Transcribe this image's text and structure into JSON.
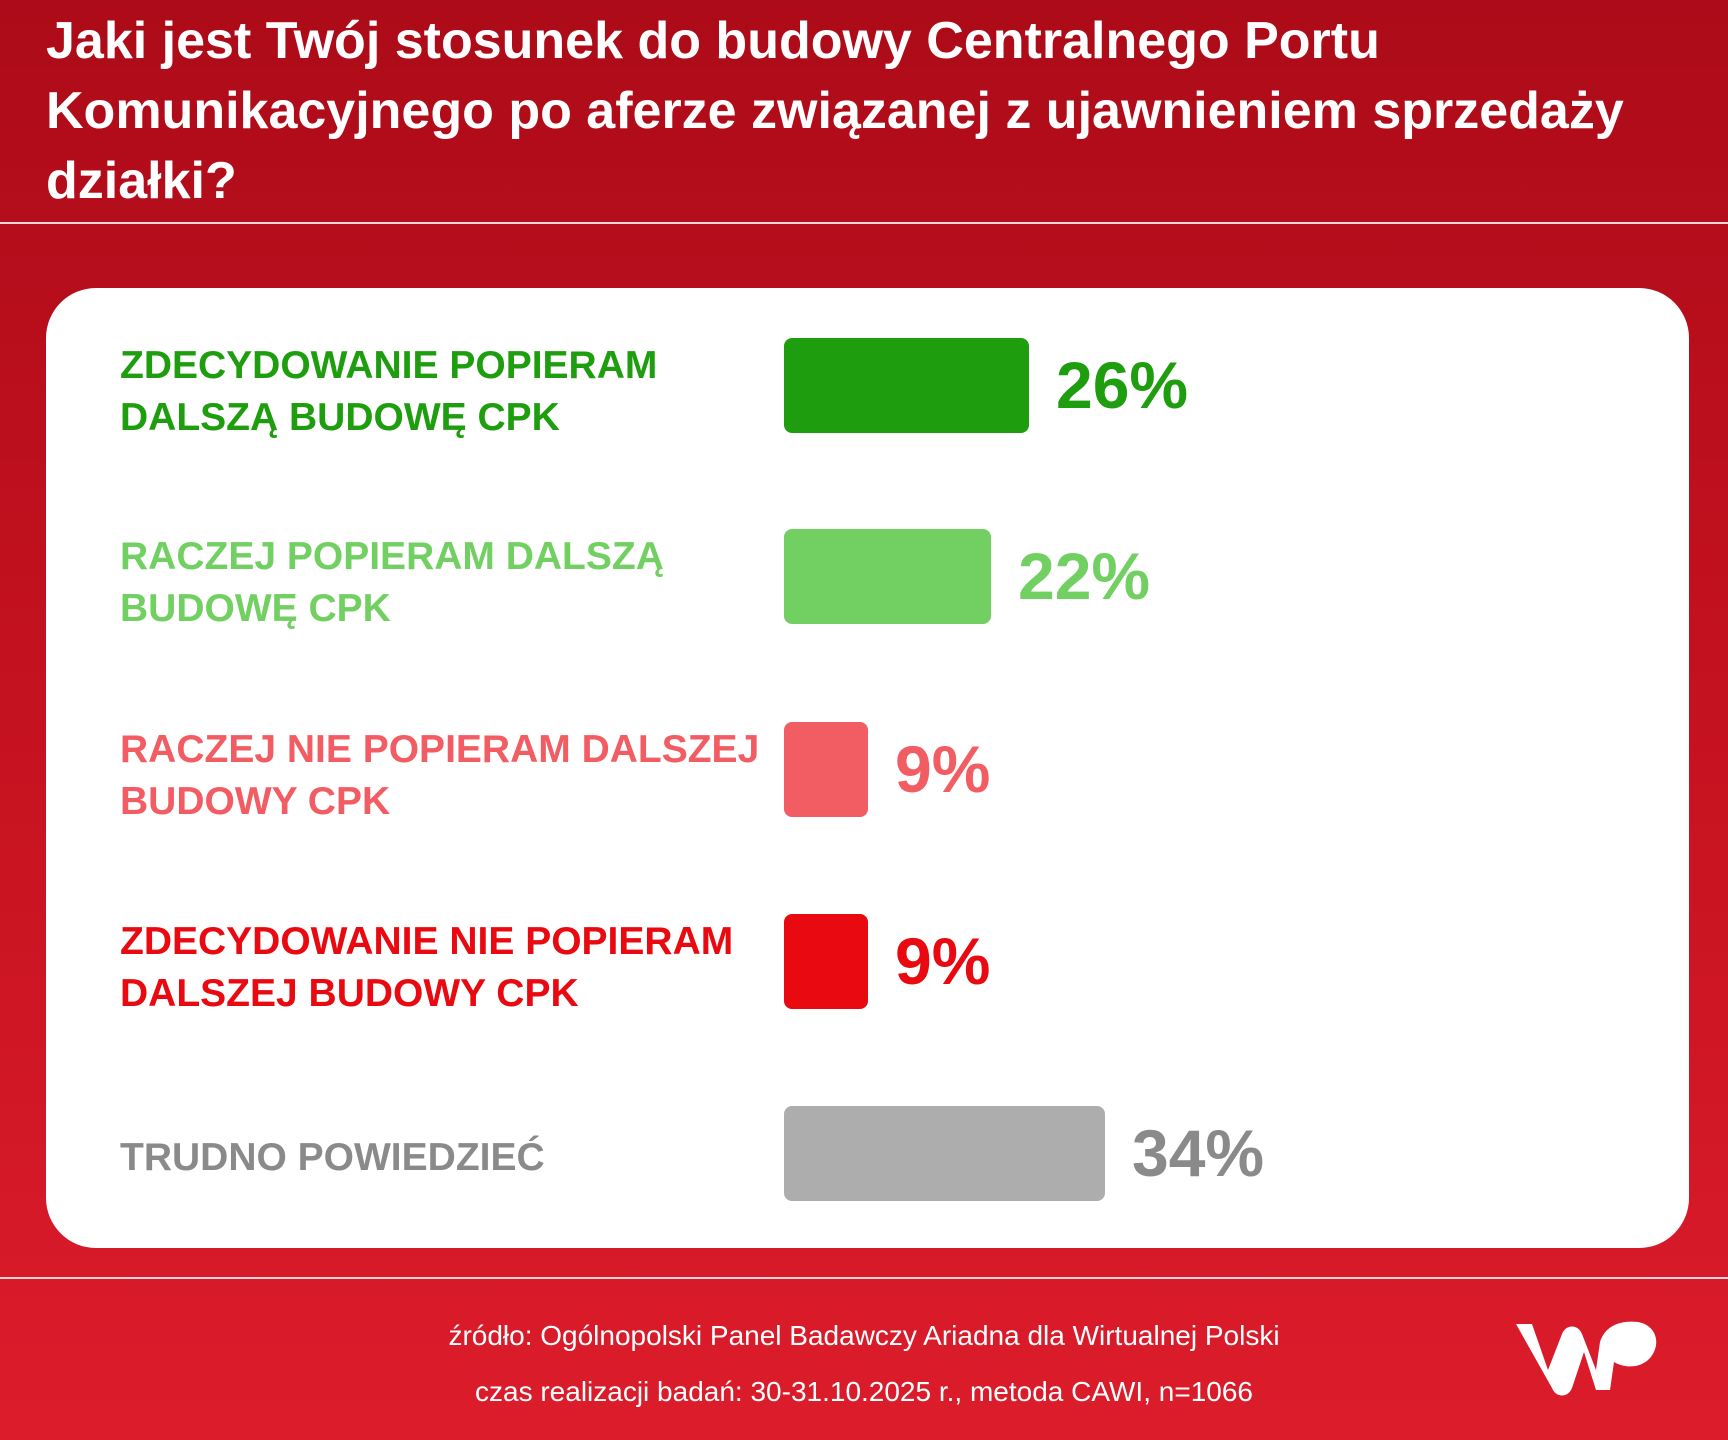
{
  "title": "Jaki jest Twój stosunek do budowy Centralnego Portu Komunikacyjnego po aferze związanej z ujawnieniem sprzedaży działki?",
  "chart_data": {
    "type": "bar",
    "orientation": "horizontal",
    "title": "Jaki jest Twój stosunek do budowy Centralnego Portu Komunikacyjnego po aferze związanej z ujawnieniem sprzedaży działki?",
    "categories": [
      "ZDECYDOWANIE POPIERAM DALSZĄ BUDOWĘ CPK",
      "RACZEJ POPIERAM DALSZĄ BUDOWĘ CPK",
      "RACZEJ NIE POPIERAM DALSZEJ BUDOWY CPK",
      "ZDECYDOWANIE NIE POPIERAM DALSZEJ BUDOWY CPK",
      "TRUDNO POWIEDZIEĆ"
    ],
    "values": [
      26,
      22,
      9,
      9,
      34
    ],
    "value_labels": [
      "26%",
      "22%",
      "9%",
      "9%",
      "34%"
    ],
    "colors": [
      "#1e9e0e",
      "#72cf62",
      "#f25c63",
      "#e80a10",
      "#adadad"
    ],
    "label_colors": [
      "#1e9e0e",
      "#72cf62",
      "#f25c63",
      "#e80a10",
      "#8a8a8a"
    ],
    "unit": "%",
    "xlabel": "",
    "ylabel": ""
  },
  "footer": {
    "source": "źródło: Ogólnopolski Panel Badawczy Ariadna dla Wirtualnej Polski",
    "method": "czas realizacji badań: 30-31.10.2025 r., metoda CAWI, n=1066"
  },
  "logo": {
    "text": "WP",
    "icon": "wp-logo-icon"
  }
}
